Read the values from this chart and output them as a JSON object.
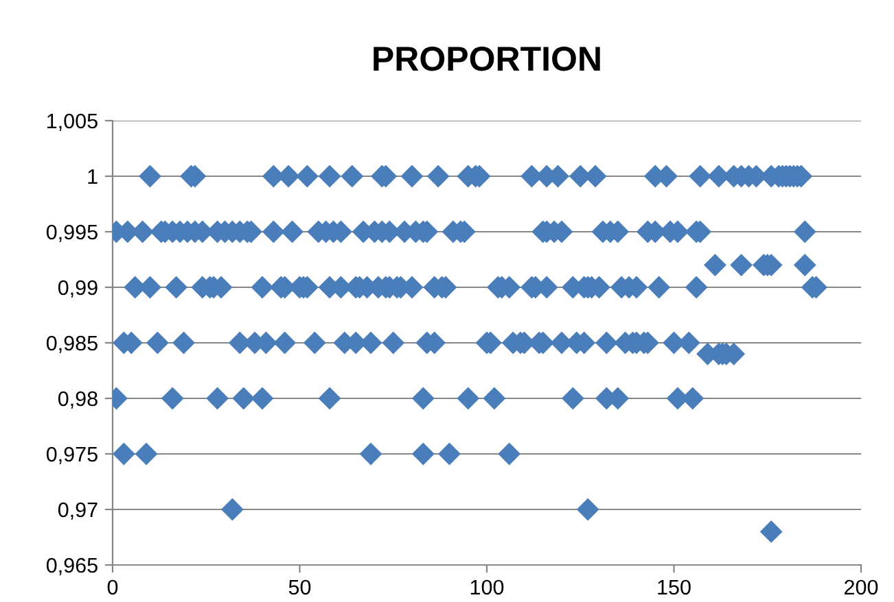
{
  "chart_data": {
    "type": "scatter",
    "title": "PROPORTION",
    "marker": "diamond",
    "grid": "y",
    "xlim": [
      0,
      200
    ],
    "xticks": [
      0,
      50,
      100,
      150,
      200
    ],
    "ylim": [
      0.965,
      1.005
    ],
    "yticks": [
      {
        "value": 0.965,
        "label": "0,965"
      },
      {
        "value": 0.97,
        "label": "0,97"
      },
      {
        "value": 0.975,
        "label": "0,975"
      },
      {
        "value": 0.98,
        "label": "0,98"
      },
      {
        "value": 0.985,
        "label": "0,985"
      },
      {
        "value": 0.99,
        "label": "0,99"
      },
      {
        "value": 0.995,
        "label": "0,995"
      },
      {
        "value": 1,
        "label": "1"
      },
      {
        "value": 1.005,
        "label": "1,005"
      }
    ],
    "series": [
      {
        "color": "#4a7ebb",
        "x": [
          10,
          21,
          22,
          43,
          47,
          52,
          58,
          64,
          72,
          73,
          80,
          87,
          95,
          97,
          98,
          112,
          116,
          119,
          125,
          129,
          145,
          148,
          157,
          162,
          166,
          168,
          170,
          172,
          176,
          178,
          179,
          180,
          181,
          182,
          183,
          184,
          1,
          4,
          8,
          13,
          14,
          16,
          18,
          20,
          22,
          24,
          28,
          30,
          32,
          34,
          36,
          37,
          43,
          48,
          55,
          57,
          59,
          61,
          67,
          70,
          72,
          74,
          78,
          81,
          83,
          84,
          91,
          93,
          94,
          115,
          116,
          118,
          120,
          131,
          133,
          135,
          143,
          145,
          149,
          151,
          156,
          157,
          185,
          6,
          10,
          17,
          24,
          26,
          27,
          29,
          40,
          45,
          46,
          50,
          51,
          52,
          58,
          61,
          65,
          66,
          68,
          71,
          73,
          74,
          76,
          77,
          80,
          86,
          88,
          89,
          103,
          104,
          106,
          112,
          113,
          116,
          123,
          126,
          127,
          128,
          130,
          136,
          138,
          140,
          146,
          156,
          187,
          188,
          161,
          168,
          174,
          175,
          176,
          185,
          3,
          5,
          12,
          19,
          34,
          38,
          41,
          46,
          54,
          62,
          65,
          69,
          75,
          84,
          86,
          100,
          101,
          107,
          109,
          110,
          114,
          115,
          120,
          124,
          126,
          132,
          137,
          139,
          140,
          142,
          143,
          150,
          154,
          159,
          162,
          163,
          164,
          166,
          1,
          16,
          28,
          35,
          40,
          58,
          83,
          95,
          102,
          123,
          132,
          135,
          151,
          155,
          3,
          9,
          69,
          83,
          90,
          106,
          32,
          127,
          176
        ],
        "values": [
          1,
          1,
          1,
          1,
          1,
          1,
          1,
          1,
          1,
          1,
          1,
          1,
          1,
          1,
          1,
          1,
          1,
          1,
          1,
          1,
          1,
          1,
          1,
          1,
          1,
          1,
          1,
          1,
          1,
          1,
          1,
          1,
          1,
          1,
          1,
          1,
          0.995,
          0.995,
          0.995,
          0.995,
          0.995,
          0.995,
          0.995,
          0.995,
          0.995,
          0.995,
          0.995,
          0.995,
          0.995,
          0.995,
          0.995,
          0.995,
          0.995,
          0.995,
          0.995,
          0.995,
          0.995,
          0.995,
          0.995,
          0.995,
          0.995,
          0.995,
          0.995,
          0.995,
          0.995,
          0.995,
          0.995,
          0.995,
          0.995,
          0.995,
          0.995,
          0.995,
          0.995,
          0.995,
          0.995,
          0.995,
          0.995,
          0.995,
          0.995,
          0.995,
          0.995,
          0.995,
          0.995,
          0.99,
          0.99,
          0.99,
          0.99,
          0.99,
          0.99,
          0.99,
          0.99,
          0.99,
          0.99,
          0.99,
          0.99,
          0.99,
          0.99,
          0.99,
          0.99,
          0.99,
          0.99,
          0.99,
          0.99,
          0.99,
          0.99,
          0.99,
          0.99,
          0.99,
          0.99,
          0.99,
          0.99,
          0.99,
          0.99,
          0.99,
          0.99,
          0.99,
          0.99,
          0.99,
          0.99,
          0.99,
          0.99,
          0.99,
          0.99,
          0.99,
          0.99,
          0.99,
          0.99,
          0.99,
          0.992,
          0.992,
          0.992,
          0.992,
          0.992,
          0.992,
          0.985,
          0.985,
          0.985,
          0.985,
          0.985,
          0.985,
          0.985,
          0.985,
          0.985,
          0.985,
          0.985,
          0.985,
          0.985,
          0.985,
          0.985,
          0.985,
          0.985,
          0.985,
          0.985,
          0.985,
          0.985,
          0.985,
          0.985,
          0.985,
          0.985,
          0.985,
          0.985,
          0.985,
          0.985,
          0.985,
          0.985,
          0.985,
          0.985,
          0.984,
          0.984,
          0.984,
          0.984,
          0.984,
          0.98,
          0.98,
          0.98,
          0.98,
          0.98,
          0.98,
          0.98,
          0.98,
          0.98,
          0.98,
          0.98,
          0.98,
          0.98,
          0.98,
          0.975,
          0.975,
          0.975,
          0.975,
          0.975,
          0.975,
          0.97,
          0.97,
          0.968
        ]
      }
    ]
  }
}
